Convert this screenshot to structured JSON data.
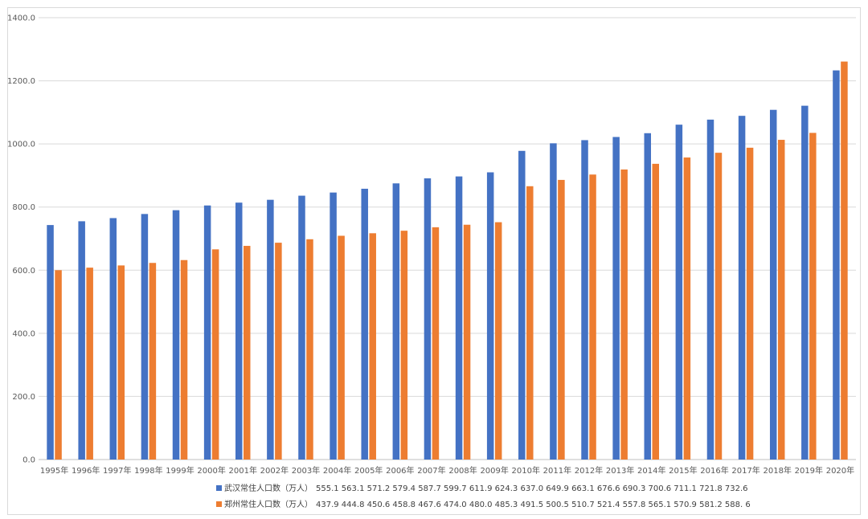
{
  "chart_data": {
    "type": "bar",
    "categories": [
      "1995年",
      "1996年",
      "1997年",
      "1998年",
      "1999年",
      "2000年",
      "2001年",
      "2002年",
      "2003年",
      "2004年",
      "2005年",
      "2006年",
      "2007年",
      "2008年",
      "2009年",
      "2010年",
      "2011年",
      "2012年",
      "2013年",
      "2014年",
      "2015年",
      "2016年",
      "2017年",
      "2018年",
      "2019年",
      "2020年"
    ],
    "ylim": [
      0,
      1400
    ],
    "y_ticks": [
      "0.0",
      "200.0",
      "400.0",
      "600.0",
      "800.0",
      "1000.0",
      "1200.0",
      "1400.0"
    ],
    "grid": true,
    "legend_position": "bottom",
    "series": [
      {
        "name": "武汉常住人口数（万人）",
        "color": "#4472C4",
        "values": [
          743,
          755,
          765,
          778,
          790,
          805,
          814,
          823,
          836,
          846,
          858,
          875,
          891,
          897,
          910,
          978,
          1002,
          1012,
          1022,
          1034,
          1061,
          1077,
          1089,
          1108,
          1121,
          1233
        ]
      },
      {
        "name": "郑州常住人口数（万人）",
        "color": "#ED7D31",
        "values": [
          600,
          608,
          615,
          623,
          632,
          666,
          677,
          687,
          698,
          709,
          717,
          725,
          736,
          744,
          752,
          866,
          886,
          903,
          919,
          937,
          957,
          972,
          988,
          1013,
          1035,
          1261
        ]
      }
    ],
    "legend_values": [
      "555.1 563.1 571.2 579.4 587.7 599.7 611.9 624.3 637.0 649.9 663.1 676.6 690.3 700.6 711.1 721.8 732.6",
      "437.9 444.8 450.6 458.8 467.6 474.0 480.0 485.3 491.5 500.5 510.7 521.4 557.8 565.1 570.9 581.2 588. 6"
    ]
  }
}
